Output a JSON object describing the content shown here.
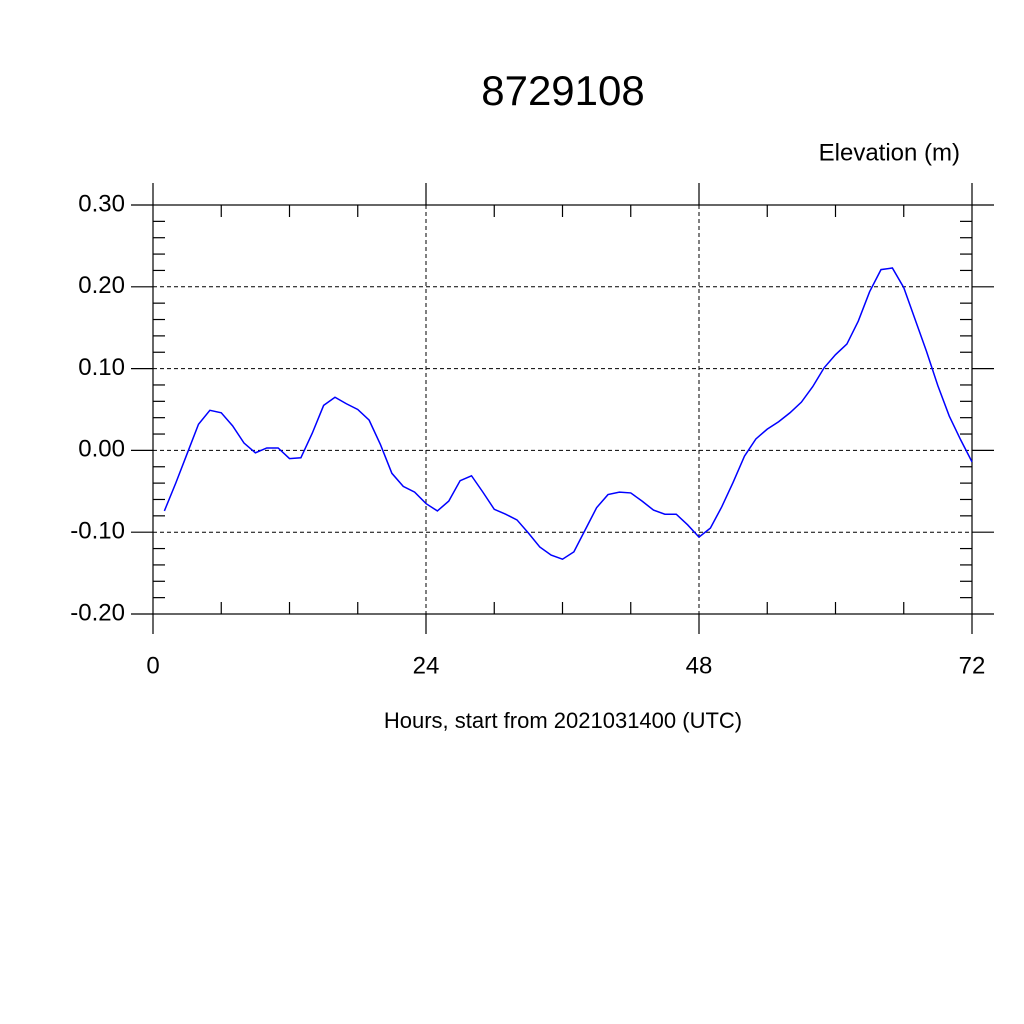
{
  "chart_data": {
    "type": "line",
    "title": "8729108",
    "ylabel": "Elevation (m)",
    "xlabel": "Hours, start from 2021031400 (UTC)",
    "x": [
      1,
      2,
      3,
      4,
      5,
      6,
      7,
      8,
      9,
      10,
      11,
      12,
      13,
      14,
      15,
      16,
      17,
      18,
      19,
      20,
      21,
      22,
      23,
      24,
      25,
      26,
      27,
      28,
      29,
      30,
      31,
      32,
      33,
      34,
      35,
      36,
      37,
      38,
      39,
      40,
      41,
      42,
      43,
      44,
      45,
      46,
      47,
      48,
      49,
      50,
      51,
      52,
      53,
      54,
      55,
      56,
      57,
      58,
      59,
      60,
      61,
      62,
      63,
      64,
      65,
      66,
      67,
      68,
      69,
      70,
      71,
      72
    ],
    "series": [
      {
        "name": "Elevation",
        "color": "#0000ff",
        "values": [
          -0.074,
          -0.04,
          -0.004,
          0.032,
          0.049,
          0.046,
          0.03,
          0.009,
          -0.003,
          0.003,
          0.003,
          -0.01,
          -0.009,
          0.021,
          0.055,
          0.065,
          0.057,
          0.05,
          0.037,
          0.007,
          -0.028,
          -0.044,
          -0.051,
          -0.065,
          -0.074,
          -0.062,
          -0.037,
          -0.031,
          -0.051,
          -0.072,
          -0.078,
          -0.085,
          -0.101,
          -0.118,
          -0.128,
          -0.133,
          -0.124,
          -0.097,
          -0.07,
          -0.054,
          -0.051,
          -0.052,
          -0.062,
          -0.073,
          -0.078,
          -0.078,
          -0.091,
          -0.106,
          -0.095,
          -0.069,
          -0.039,
          -0.007,
          0.014,
          0.026,
          0.035,
          0.046,
          0.059,
          0.078,
          0.101,
          0.117,
          0.13,
          0.158,
          0.194,
          0.221,
          0.223,
          0.199,
          0.16,
          0.121,
          0.079,
          0.042,
          0.013,
          -0.014
        ]
      }
    ],
    "xlim": [
      0,
      72
    ],
    "xticks": [
      0,
      24,
      48,
      72
    ],
    "ylim": [
      -0.2,
      0.3
    ],
    "yticks": [
      {
        "value": 0.3,
        "label": "0.30"
      },
      {
        "value": 0.2,
        "label": "0.20"
      },
      {
        "value": 0.1,
        "label": "0.10"
      },
      {
        "value": 0,
        "label": "0.00"
      },
      {
        "value": -0.1,
        "label": "-0.10"
      },
      {
        "value": -0.2,
        "label": "-0.20"
      }
    ],
    "grid": true
  }
}
